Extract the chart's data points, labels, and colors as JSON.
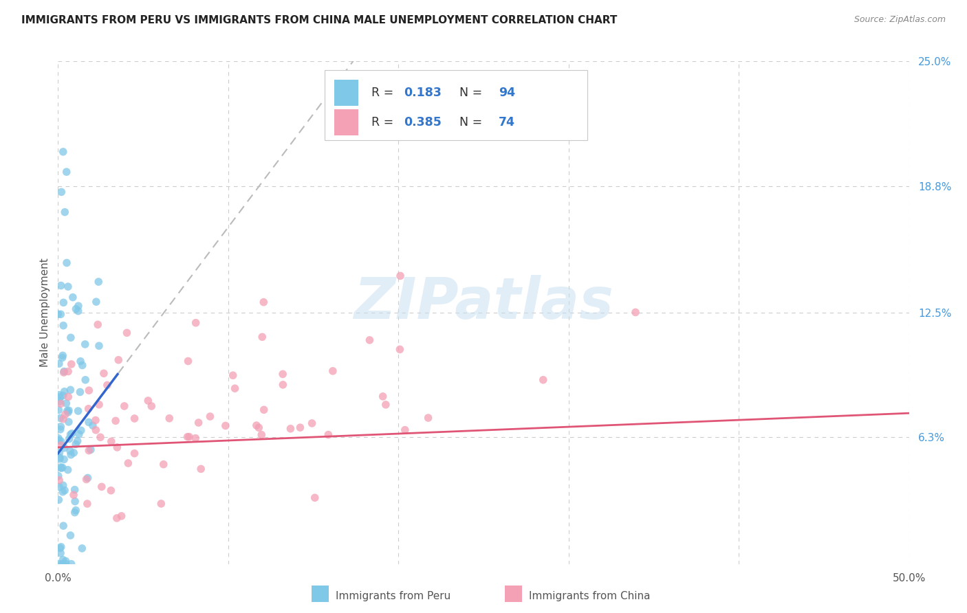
{
  "title": "IMMIGRANTS FROM PERU VS IMMIGRANTS FROM CHINA MALE UNEMPLOYMENT CORRELATION CHART",
  "source": "Source: ZipAtlas.com",
  "ylabel": "Male Unemployment",
  "x_min": 0.0,
  "x_max": 0.5,
  "y_min": 0.0,
  "y_max": 0.25,
  "peru_color": "#80c8e8",
  "china_color": "#f4a0b5",
  "trend_peru_color": "#3366cc",
  "trend_china_color": "#e05575",
  "trend_extend_color": "#bbbbbb",
  "r_peru": 0.183,
  "n_peru": 94,
  "r_china": 0.385,
  "n_china": 74,
  "watermark": "ZIPatlas",
  "background_color": "#ffffff",
  "grid_color": "#cccccc",
  "legend_label_peru": "Immigrants from Peru",
  "legend_label_china": "Immigrants from China",
  "stat_color": "#3377cc",
  "title_color": "#222222",
  "source_color": "#888888",
  "ylabel_color": "#555555",
  "tick_color": "#555555",
  "right_tick_color": "#4499dd"
}
